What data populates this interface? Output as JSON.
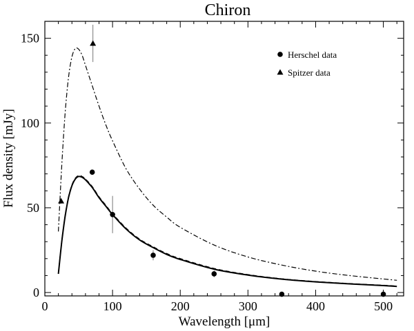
{
  "chart_data": {
    "type": "scatter",
    "title": "Chiron",
    "xlabel": "Wavelength [μm]",
    "ylabel": "Flux density [mJy]",
    "xlim": [
      0,
      530
    ],
    "ylim": [
      -2,
      160
    ],
    "x_ticks": [
      "0",
      "100",
      "200",
      "300",
      "400",
      "500"
    ],
    "y_ticks": [
      "0",
      "50",
      "100",
      "150"
    ],
    "legend_position": "top-right",
    "series": [
      {
        "name": "Herschel data",
        "marker": "circle",
        "points": [
          {
            "x": 70,
            "y": 71,
            "err": 1.5
          },
          {
            "x": 100,
            "y": 46,
            "err": 11
          },
          {
            "x": 160,
            "y": 22,
            "err": 3
          },
          {
            "x": 250,
            "y": 11,
            "err": 2
          },
          {
            "x": 350,
            "y": -1,
            "err": 1
          },
          {
            "x": 500,
            "y": -1,
            "err": 1
          }
        ]
      },
      {
        "name": "Spitzer data",
        "marker": "triangle",
        "points": [
          {
            "x": 24,
            "y": 54,
            "err": 1.5
          },
          {
            "x": 71,
            "y": 147,
            "err": 11
          }
        ]
      }
    ],
    "curves": [
      {
        "style": "solid",
        "x": [
          20,
          25,
          30,
          35,
          40,
          45,
          50,
          55,
          60,
          70,
          80,
          90,
          100,
          120,
          140,
          160,
          180,
          200,
          250,
          300,
          350,
          400,
          450,
          500,
          520
        ],
        "y": [
          11,
          30,
          45,
          56,
          63,
          67,
          68.5,
          68,
          66.5,
          62,
          56,
          51,
          46,
          37.5,
          31,
          26.5,
          22.5,
          19.5,
          13.8,
          10.3,
          7.9,
          6.3,
          5.1,
          4.1,
          3.6
        ]
      },
      {
        "style": "dashed",
        "x": [
          20,
          25,
          30,
          35,
          40,
          45,
          50,
          55,
          60,
          70,
          80,
          90,
          100,
          120,
          140,
          160,
          180,
          200,
          250,
          300,
          350,
          400,
          450,
          500,
          520
        ],
        "y": [
          11.5,
          30.5,
          45.5,
          56.5,
          63.5,
          67.5,
          69,
          68.5,
          67,
          62.5,
          56.5,
          51.5,
          46.5,
          38,
          31.5,
          27,
          23,
          20,
          14.2,
          10.6,
          8.1,
          6.5,
          5.3,
          4.3,
          3.8
        ]
      },
      {
        "style": "dash-dot",
        "x": [
          20,
          25,
          30,
          35,
          40,
          45,
          50,
          55,
          60,
          70,
          80,
          90,
          100,
          120,
          140,
          160,
          180,
          200,
          250,
          300,
          350,
          400,
          450,
          500,
          520
        ],
        "y": [
          36,
          75,
          106,
          127,
          139,
          144,
          143.5,
          140,
          134,
          122,
          110,
          99,
          89.5,
          73,
          61,
          51.5,
          44.5,
          38.5,
          28,
          21,
          16.2,
          12.6,
          10,
          8,
          7.2
        ]
      }
    ]
  }
}
